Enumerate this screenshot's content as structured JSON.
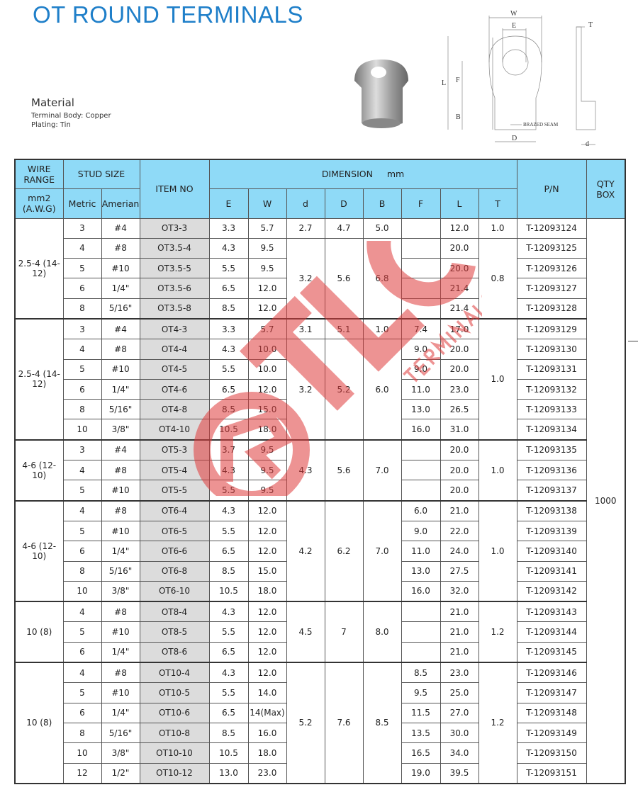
{
  "title": "OT ROUND TERMINALS",
  "material": {
    "heading": "Material",
    "lines": [
      "Terminal Body: Copper",
      "Plating: Tin"
    ]
  },
  "drawing": {
    "labels": [
      "W",
      "E",
      "L",
      "F",
      "B",
      "D",
      "T",
      "d"
    ],
    "note": "BRAZED SEAM"
  },
  "watermark": {
    "brand": "TLC",
    "sub": "TERMINALS"
  },
  "colors": {
    "title": "#1f7fc9",
    "header_bg": "#8fdaf7",
    "item_bg": "#dcdcdc",
    "watermark": "#e05050"
  },
  "table": {
    "headers": {
      "wire_range": "WIRE RANGE",
      "stud_size": "STUD SIZE",
      "item_no": "ITEM NO",
      "dimension": "DIMENSION     mm",
      "pn": "P/N",
      "qty": "QTY BOX",
      "wire_unit": "mm2 (A.W.G)",
      "metric": "Metric",
      "amerian": "Amerian",
      "dims": [
        "E",
        "W",
        "d",
        "D",
        "B",
        "F",
        "L",
        "T"
      ]
    },
    "qty": "1000",
    "groups": [
      {
        "wire": "2.5-4 (14-12)",
        "rows": [
          [
            "3",
            "#4",
            "OT3-3",
            "3.3",
            "5.7",
            "",
            "12.0",
            "T-12093124"
          ],
          [
            "4",
            "#8",
            "OT3.5-4",
            "4.3",
            "9.5",
            "",
            "20.0",
            "T-12093125"
          ],
          [
            "5",
            "#10",
            "OT3.5-5",
            "5.5",
            "9.5",
            "",
            "20.0",
            "T-12093126"
          ],
          [
            "6",
            "1/4\"",
            "OT3.5-6",
            "6.5",
            "12.0",
            "",
            "21.4",
            "T-12093127"
          ],
          [
            "8",
            "5/16\"",
            "OT3.5-8",
            "8.5",
            "12.0",
            "",
            "21.4",
            "T-12093128"
          ]
        ],
        "d": [
          [
            "2.7",
            1
          ],
          [
            "3.2",
            4
          ]
        ],
        "D": [
          [
            "4.7",
            1
          ],
          [
            "5.6",
            4
          ]
        ],
        "B": [
          [
            "5.0",
            1
          ],
          [
            "6.8",
            4
          ]
        ],
        "T": [
          [
            "1.0",
            1
          ],
          [
            "0.8",
            4
          ]
        ]
      },
      {
        "wire": "2.5-4 (14-12)",
        "rows": [
          [
            "3",
            "#4",
            "OT4-3",
            "3.3",
            "5.7",
            "7.4",
            "17.0",
            "T-12093129"
          ],
          [
            "4",
            "#8",
            "OT4-4",
            "4.3",
            "10.0",
            "9.0",
            "20.0",
            "T-12093130"
          ],
          [
            "5",
            "#10",
            "OT4-5",
            "5.5",
            "10.0",
            "9.0",
            "20.0",
            "T-12093131"
          ],
          [
            "6",
            "1/4\"",
            "OT4-6",
            "6.5",
            "12.0",
            "11.0",
            "23.0",
            "T-12093132"
          ],
          [
            "8",
            "5/16\"",
            "OT4-8",
            "8.5",
            "15.0",
            "13.0",
            "26.5",
            "T-12093133"
          ],
          [
            "10",
            "3/8\"",
            "OT4-10",
            "10.5",
            "18.0",
            "16.0",
            "31.0",
            "T-12093134"
          ]
        ],
        "d": [
          [
            "3.1",
            1
          ],
          [
            "3.2",
            5
          ]
        ],
        "D": [
          [
            "5.1",
            1
          ],
          [
            "5.2",
            5
          ]
        ],
        "B": [
          [
            "1.0",
            1
          ],
          [
            "6.0",
            5
          ]
        ],
        "T": [
          [
            "1.0",
            6
          ]
        ]
      },
      {
        "wire": "4-6 (12-10)",
        "rows": [
          [
            "3",
            "#4",
            "OT5-3",
            "3.7",
            "9.5",
            "",
            "20.0",
            "T-12093135"
          ],
          [
            "4",
            "#8",
            "OT5-4",
            "4.3",
            "9.5",
            "",
            "20.0",
            "T-12093136"
          ],
          [
            "5",
            "#10",
            "OT5-5",
            "5.5",
            "9.5",
            "",
            "20.0",
            "T-12093137"
          ]
        ],
        "d": [
          [
            "4.3",
            3
          ]
        ],
        "D": [
          [
            "5.6",
            3
          ]
        ],
        "B": [
          [
            "7.0",
            3
          ]
        ],
        "T": [
          [
            "1.0",
            3
          ]
        ]
      },
      {
        "wire": "4-6 (12-10)",
        "rows": [
          [
            "4",
            "#8",
            "OT6-4",
            "4.3",
            "12.0",
            "6.0",
            "21.0",
            "T-12093138"
          ],
          [
            "5",
            "#10",
            "OT6-5",
            "5.5",
            "12.0",
            "9.0",
            "22.0",
            "T-12093139"
          ],
          [
            "6",
            "1/4\"",
            "OT6-6",
            "6.5",
            "12.0",
            "11.0",
            "24.0",
            "T-12093140"
          ],
          [
            "8",
            "5/16\"",
            "OT6-8",
            "8.5",
            "15.0",
            "13.0",
            "27.5",
            "T-12093141"
          ],
          [
            "10",
            "3/8\"",
            "OT6-10",
            "10.5",
            "18.0",
            "16.0",
            "32.0",
            "T-12093142"
          ]
        ],
        "d": [
          [
            "4.2",
            5
          ]
        ],
        "D": [
          [
            "6.2",
            5
          ]
        ],
        "B": [
          [
            "7.0",
            5
          ]
        ],
        "T": [
          [
            "1.0",
            5
          ]
        ]
      },
      {
        "wire": "10 (8)",
        "rows": [
          [
            "4",
            "#8",
            "OT8-4",
            "4.3",
            "12.0",
            "",
            "21.0",
            "T-12093143"
          ],
          [
            "5",
            "#10",
            "OT8-5",
            "5.5",
            "12.0",
            "",
            "21.0",
            "T-12093144"
          ],
          [
            "6",
            "1/4\"",
            "OT8-6",
            "6.5",
            "12.0",
            "",
            "21.0",
            "T-12093145"
          ]
        ],
        "d": [
          [
            "4.5",
            3
          ]
        ],
        "D": [
          [
            "7",
            3
          ]
        ],
        "B": [
          [
            "8.0",
            3
          ]
        ],
        "T": [
          [
            "1.2",
            3
          ]
        ]
      },
      {
        "wire": "10 (8)",
        "rows": [
          [
            "4",
            "#8",
            "OT10-4",
            "4.3",
            "12.0",
            "8.5",
            "23.0",
            "T-12093146"
          ],
          [
            "5",
            "#10",
            "OT10-5",
            "5.5",
            "14.0",
            "9.5",
            "25.0",
            "T-12093147"
          ],
          [
            "6",
            "1/4\"",
            "OT10-6",
            "6.5",
            "14(Max)",
            "11.5",
            "27.0",
            "T-12093148"
          ],
          [
            "8",
            "5/16\"",
            "OT10-8",
            "8.5",
            "16.0",
            "13.5",
            "30.0",
            "T-12093149"
          ],
          [
            "10",
            "3/8\"",
            "OT10-10",
            "10.5",
            "18.0",
            "16.5",
            "34.0",
            "T-12093150"
          ],
          [
            "12",
            "1/2\"",
            "OT10-12",
            "13.0",
            "23.0",
            "19.0",
            "39.5",
            "T-12093151"
          ]
        ],
        "d": [
          [
            "5.2",
            6
          ]
        ],
        "D": [
          [
            "7.6",
            6
          ]
        ],
        "B": [
          [
            "8.5",
            6
          ]
        ],
        "T": [
          [
            "1.2",
            6
          ]
        ]
      }
    ]
  }
}
